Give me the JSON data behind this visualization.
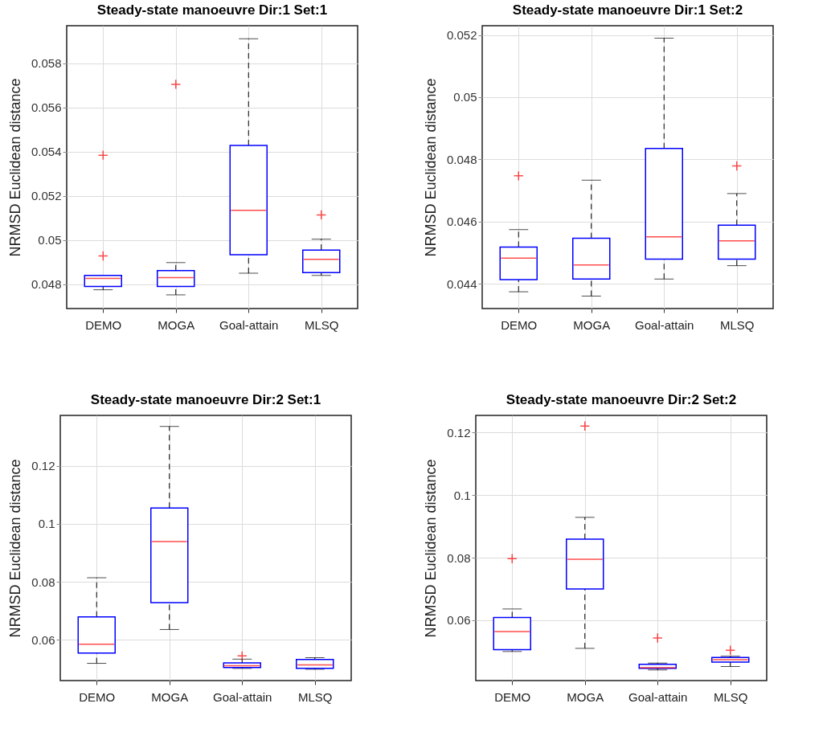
{
  "chart_data": [
    {
      "type": "box",
      "title": "Steady-state manoeuvre Dir:1 Set:1",
      "ylabel": "NRMSD Euclidean distance",
      "categories": [
        "DEMO",
        "MOGA",
        "Goal-attain",
        "MLSQ"
      ],
      "ylim": [
        0.0469,
        0.0597
      ],
      "yticks": [
        0.048,
        0.05,
        0.052,
        0.054,
        0.056,
        0.058
      ],
      "grid": true,
      "series": [
        {
          "color": "#0000ff",
          "boxes": [
            {
              "low": 0.04775,
              "q1": 0.0479,
              "median": 0.04826,
              "q3": 0.0484,
              "high": 0.0484,
              "outliers": [
                0.04928,
                0.05384
              ]
            },
            {
              "low": 0.04752,
              "q1": 0.0479,
              "median": 0.0483,
              "q3": 0.04862,
              "high": 0.04898,
              "outliers": [
                0.05705
              ]
            },
            {
              "low": 0.0485,
              "q1": 0.04934,
              "median": 0.05135,
              "q3": 0.05428,
              "high": 0.05911
            },
            {
              "low": 0.0484,
              "q1": 0.04853,
              "median": 0.04913,
              "q3": 0.04955,
              "high": 0.05004,
              "outliers": [
                0.05114
              ]
            }
          ]
        }
      ]
    },
    {
      "type": "box",
      "title": "Steady-state manoeuvre Dir:1 Set:2",
      "ylabel": "NRMSD Euclidean distance",
      "categories": [
        "DEMO",
        "MOGA",
        "Goal-attain",
        "MLSQ"
      ],
      "ylim": [
        0.0432,
        0.0523
      ],
      "yticks": [
        0.044,
        0.046,
        0.048,
        0.05,
        0.052
      ],
      "grid": true,
      "series": [
        {
          "color": "#0000ff",
          "boxes": [
            {
              "low": 0.04374,
              "q1": 0.04413,
              "median": 0.04482,
              "q3": 0.04518,
              "high": 0.04574,
              "outliers": [
                0.04747
              ]
            },
            {
              "low": 0.0436,
              "q1": 0.04415,
              "median": 0.0446,
              "q3": 0.04546,
              "high": 0.04733
            },
            {
              "low": 0.04415,
              "q1": 0.04479,
              "median": 0.04551,
              "q3": 0.04835,
              "high": 0.0519
            },
            {
              "low": 0.04458,
              "q1": 0.04479,
              "median": 0.04538,
              "q3": 0.04588,
              "high": 0.0469,
              "outliers": [
                0.04779
              ]
            }
          ]
        }
      ]
    },
    {
      "type": "box",
      "title": "Steady-state manoeuvre Dir:2 Set:1",
      "ylabel": "NRMSD Euclidean distance",
      "categories": [
        "DEMO",
        "MOGA",
        "Goal-attain",
        "MLSQ"
      ],
      "ylim": [
        0.0459,
        0.1374
      ],
      "yticks": [
        0.06,
        0.08,
        0.1,
        0.12
      ],
      "grid": true,
      "series": [
        {
          "color": "#0000ff",
          "boxes": [
            {
              "low": 0.05185,
              "q1": 0.05537,
              "median": 0.05843,
              "q3": 0.06787,
              "high": 0.08139
            },
            {
              "low": 0.06352,
              "q1": 0.07278,
              "median": 0.09389,
              "q3": 0.10546,
              "high": 0.1336
            },
            {
              "low": 0.0501,
              "q1": 0.0504,
              "median": 0.051,
              "q3": 0.052,
              "high": 0.0533,
              "outliers": [
                0.0544
              ]
            },
            {
              "low": 0.0498,
              "q1": 0.0501,
              "median": 0.0513,
              "q3": 0.0532,
              "high": 0.0538
            }
          ]
        }
      ]
    },
    {
      "type": "box",
      "title": "Steady-state manoeuvre Dir:2 Set:2",
      "ylabel": "NRMSD Euclidean distance",
      "categories": [
        "DEMO",
        "MOGA",
        "Goal-attain",
        "MLSQ"
      ],
      "ylim": [
        0.0407,
        0.1255
      ],
      "yticks": [
        0.06,
        0.08,
        0.1,
        0.12
      ],
      "grid": true,
      "series": [
        {
          "color": "#0000ff",
          "boxes": [
            {
              "low": 0.05,
              "q1": 0.0506,
              "median": 0.0564,
              "q3": 0.0609,
              "high": 0.0636,
              "outliers": [
                0.0797
              ]
            },
            {
              "low": 0.051,
              "q1": 0.07,
              "median": 0.0795,
              "q3": 0.0859,
              "high": 0.0929,
              "outliers": [
                0.1221
              ]
            },
            {
              "low": 0.0441,
              "q1": 0.0446,
              "median": 0.0448,
              "q3": 0.0459,
              "high": 0.0463,
              "outliers": [
                0.0543
              ]
            },
            {
              "low": 0.0452,
              "q1": 0.0466,
              "median": 0.0474,
              "q3": 0.0481,
              "high": 0.0485,
              "outliers": [
                0.0504
              ]
            }
          ]
        }
      ]
    }
  ]
}
